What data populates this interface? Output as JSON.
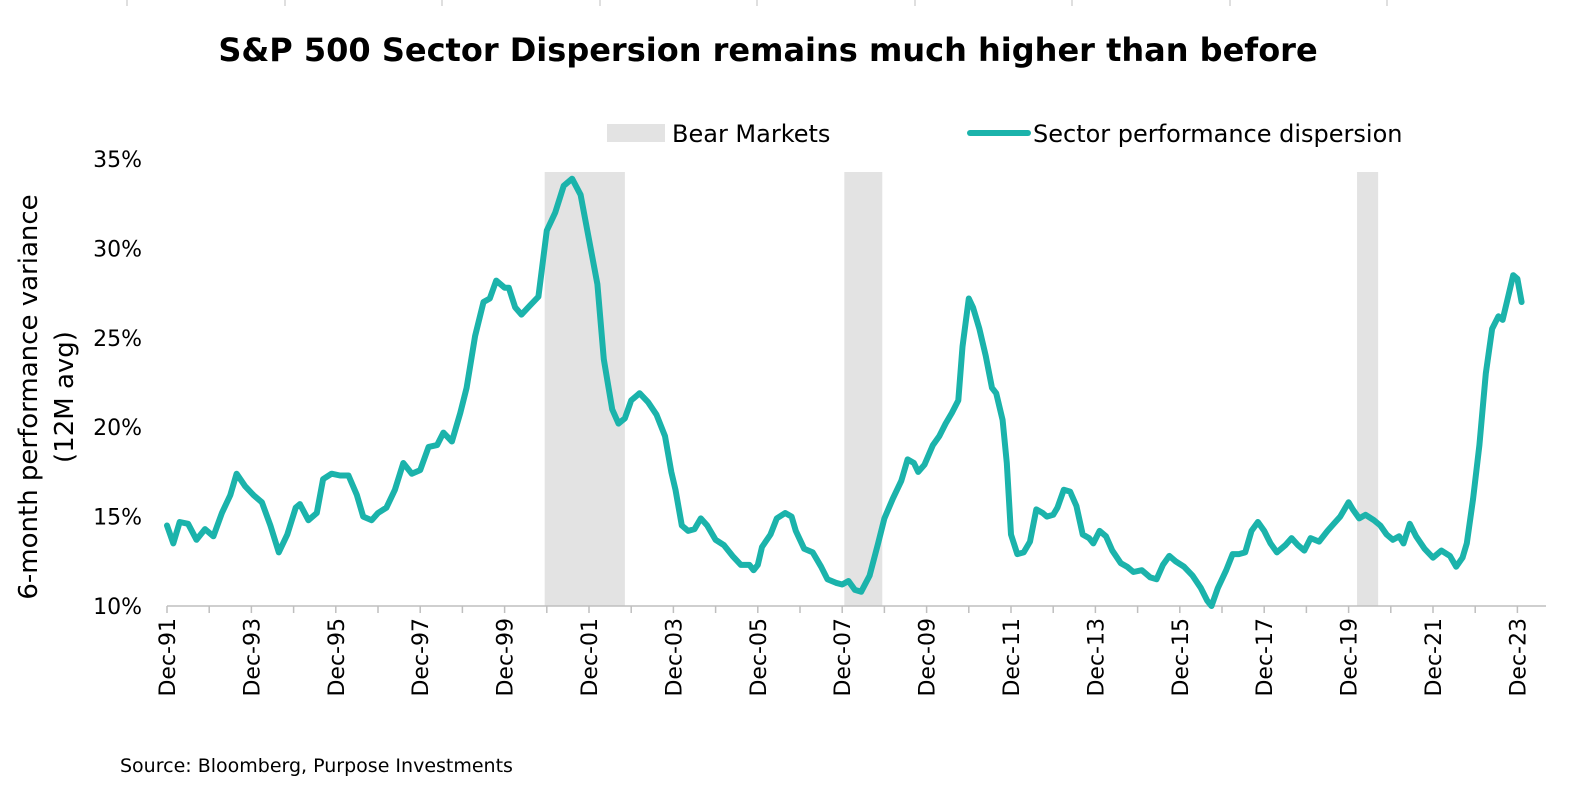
{
  "chart_data": {
    "type": "line",
    "title": "S&P 500 Sector Dispersion remains much higher than before",
    "ylabel_line1": "6-month performance variance",
    "ylabel_line2": "(12M avg)",
    "source": "Source: Bloomberg, Purpose Investments",
    "ylim": [
      10,
      35
    ],
    "yticks": [
      10,
      15,
      20,
      25,
      30,
      35
    ],
    "ytick_labels": [
      "10%",
      "15%",
      "20%",
      "25%",
      "30%",
      "35%"
    ],
    "xlim": [
      1991.95,
      2024.3
    ],
    "xticks": [
      1991.95,
      1993.95,
      1995.95,
      1997.95,
      1999.95,
      2001.95,
      2003.95,
      2005.95,
      2007.95,
      2009.95,
      2011.95,
      2013.95,
      2015.95,
      2017.95,
      2019.95,
      2021.95,
      2023.95
    ],
    "xtick_labels": [
      "Dec-91",
      "Dec-93",
      "Dec-95",
      "Dec-97",
      "Dec-99",
      "Dec-01",
      "Dec-03",
      "Dec-05",
      "Dec-07",
      "Dec-09",
      "Dec-11",
      "Dec-13",
      "Dec-15",
      "Dec-17",
      "Dec-19",
      "Dec-21",
      "Dec-23"
    ],
    "legend": {
      "position": "top-right",
      "bear_label": "Bear Markets",
      "series_label": "Sector performance dispersion"
    },
    "bear_markets": [
      [
        2000.9,
        2002.8
      ],
      [
        2008.0,
        2008.9
      ],
      [
        2020.15,
        2020.65
      ]
    ],
    "colors": {
      "line": "#1bb3ab",
      "bear": "#e3e3e3",
      "axis": "#bfbfbf"
    },
    "series": [
      {
        "name": "Sector performance dispersion",
        "points": [
          [
            1991.95,
            14.5
          ],
          [
            1992.1,
            13.5
          ],
          [
            1992.25,
            14.7
          ],
          [
            1992.45,
            14.6
          ],
          [
            1992.65,
            13.7
          ],
          [
            1992.85,
            14.3
          ],
          [
            1993.05,
            13.9
          ],
          [
            1993.25,
            15.2
          ],
          [
            1993.45,
            16.2
          ],
          [
            1993.6,
            17.4
          ],
          [
            1993.8,
            16.7
          ],
          [
            1994.0,
            16.2
          ],
          [
            1994.2,
            15.8
          ],
          [
            1994.4,
            14.5
          ],
          [
            1994.6,
            13.0
          ],
          [
            1994.8,
            14.0
          ],
          [
            1995.0,
            15.5
          ],
          [
            1995.1,
            15.7
          ],
          [
            1995.3,
            14.8
          ],
          [
            1995.5,
            15.2
          ],
          [
            1995.65,
            17.1
          ],
          [
            1995.85,
            17.4
          ],
          [
            1996.05,
            17.3
          ],
          [
            1996.25,
            17.3
          ],
          [
            1996.45,
            16.2
          ],
          [
            1996.6,
            15.0
          ],
          [
            1996.8,
            14.8
          ],
          [
            1996.95,
            15.2
          ],
          [
            1997.15,
            15.5
          ],
          [
            1997.35,
            16.5
          ],
          [
            1997.55,
            18.0
          ],
          [
            1997.75,
            17.4
          ],
          [
            1997.95,
            17.6
          ],
          [
            1998.15,
            18.9
          ],
          [
            1998.35,
            19.0
          ],
          [
            1998.5,
            19.7
          ],
          [
            1998.7,
            19.2
          ],
          [
            1998.9,
            20.8
          ],
          [
            1999.05,
            22.2
          ],
          [
            1999.25,
            25.1
          ],
          [
            1999.45,
            27.0
          ],
          [
            1999.6,
            27.2
          ],
          [
            1999.75,
            28.2
          ],
          [
            1999.95,
            27.8
          ],
          [
            2000.05,
            27.8
          ],
          [
            2000.2,
            26.7
          ],
          [
            2000.35,
            26.3
          ],
          [
            2000.55,
            26.8
          ],
          [
            2000.75,
            27.3
          ],
          [
            2000.95,
            31.0
          ],
          [
            2001.05,
            31.5
          ],
          [
            2001.15,
            32.0
          ],
          [
            2001.35,
            33.5
          ],
          [
            2001.55,
            33.9
          ],
          [
            2001.75,
            33.0
          ],
          [
            2001.95,
            30.5
          ],
          [
            2002.15,
            28.0
          ],
          [
            2002.3,
            23.8
          ],
          [
            2002.5,
            21.0
          ],
          [
            2002.65,
            20.2
          ],
          [
            2002.8,
            20.5
          ],
          [
            2002.95,
            21.5
          ],
          [
            2003.15,
            21.9
          ],
          [
            2003.35,
            21.4
          ],
          [
            2003.55,
            20.7
          ],
          [
            2003.75,
            19.5
          ],
          [
            2003.9,
            17.5
          ],
          [
            2004.0,
            16.5
          ],
          [
            2004.15,
            14.5
          ],
          [
            2004.3,
            14.2
          ],
          [
            2004.45,
            14.3
          ],
          [
            2004.6,
            14.9
          ],
          [
            2004.75,
            14.5
          ],
          [
            2004.95,
            13.7
          ],
          [
            2005.15,
            13.4
          ],
          [
            2005.35,
            12.8
          ],
          [
            2005.55,
            12.3
          ],
          [
            2005.75,
            12.3
          ],
          [
            2005.85,
            12.0
          ],
          [
            2005.95,
            12.3
          ],
          [
            2006.05,
            13.3
          ],
          [
            2006.25,
            14.0
          ],
          [
            2006.4,
            14.9
          ],
          [
            2006.6,
            15.2
          ],
          [
            2006.75,
            15.0
          ],
          [
            2006.85,
            14.2
          ],
          [
            2006.95,
            13.7
          ],
          [
            2007.05,
            13.2
          ],
          [
            2007.25,
            13.0
          ],
          [
            2007.45,
            12.2
          ],
          [
            2007.6,
            11.5
          ],
          [
            2007.8,
            11.3
          ],
          [
            2007.95,
            11.2
          ],
          [
            2008.1,
            11.4
          ],
          [
            2008.25,
            10.9
          ],
          [
            2008.4,
            10.8
          ],
          [
            2008.6,
            11.7
          ],
          [
            2008.8,
            13.5
          ],
          [
            2008.95,
            14.9
          ],
          [
            2009.15,
            16.0
          ],
          [
            2009.35,
            17.0
          ],
          [
            2009.5,
            18.2
          ],
          [
            2009.65,
            18.0
          ],
          [
            2009.75,
            17.5
          ],
          [
            2009.9,
            17.9
          ],
          [
            2010.1,
            19.0
          ],
          [
            2010.25,
            19.5
          ],
          [
            2010.4,
            20.2
          ],
          [
            2010.55,
            20.8
          ],
          [
            2010.7,
            21.5
          ],
          [
            2010.8,
            24.5
          ],
          [
            2010.95,
            27.2
          ],
          [
            2011.05,
            26.7
          ],
          [
            2011.2,
            25.5
          ],
          [
            2011.35,
            24.0
          ],
          [
            2011.5,
            22.2
          ],
          [
            2011.6,
            21.9
          ],
          [
            2011.75,
            20.4
          ],
          [
            2011.85,
            18.0
          ],
          [
            2011.95,
            14.0
          ],
          [
            2012.1,
            12.9
          ],
          [
            2012.25,
            13.0
          ],
          [
            2012.4,
            13.6
          ],
          [
            2012.55,
            15.4
          ],
          [
            2012.7,
            15.2
          ],
          [
            2012.8,
            15.0
          ],
          [
            2012.95,
            15.1
          ],
          [
            2013.05,
            15.5
          ],
          [
            2013.2,
            16.5
          ],
          [
            2013.35,
            16.4
          ],
          [
            2013.5,
            15.6
          ],
          [
            2013.65,
            14.0
          ],
          [
            2013.8,
            13.8
          ],
          [
            2013.9,
            13.5
          ],
          [
            2014.05,
            14.2
          ],
          [
            2014.2,
            13.9
          ],
          [
            2014.35,
            13.1
          ],
          [
            2014.55,
            12.4
          ],
          [
            2014.7,
            12.2
          ],
          [
            2014.85,
            11.9
          ],
          [
            2015.05,
            12.0
          ],
          [
            2015.25,
            11.6
          ],
          [
            2015.4,
            11.5
          ],
          [
            2015.55,
            12.3
          ],
          [
            2015.7,
            12.8
          ],
          [
            2015.85,
            12.5
          ],
          [
            2016.05,
            12.2
          ],
          [
            2016.25,
            11.7
          ],
          [
            2016.45,
            11.0
          ],
          [
            2016.6,
            10.3
          ],
          [
            2016.7,
            10.0
          ],
          [
            2016.85,
            11.0
          ],
          [
            2017.05,
            12.0
          ],
          [
            2017.2,
            12.9
          ],
          [
            2017.35,
            12.9
          ],
          [
            2017.5,
            13.0
          ],
          [
            2017.65,
            14.2
          ],
          [
            2017.8,
            14.7
          ],
          [
            2017.95,
            14.2
          ],
          [
            2018.1,
            13.5
          ],
          [
            2018.25,
            13.0
          ],
          [
            2018.45,
            13.4
          ],
          [
            2018.6,
            13.8
          ],
          [
            2018.75,
            13.4
          ],
          [
            2018.9,
            13.1
          ],
          [
            2019.05,
            13.8
          ],
          [
            2019.25,
            13.6
          ],
          [
            2019.45,
            14.2
          ],
          [
            2019.6,
            14.6
          ],
          [
            2019.75,
            15.0
          ],
          [
            2019.95,
            15.8
          ],
          [
            2020.05,
            15.4
          ],
          [
            2020.2,
            14.9
          ],
          [
            2020.35,
            15.1
          ],
          [
            2020.55,
            14.8
          ],
          [
            2020.7,
            14.5
          ],
          [
            2020.85,
            14.0
          ],
          [
            2021.0,
            13.7
          ],
          [
            2021.15,
            13.9
          ],
          [
            2021.25,
            13.5
          ],
          [
            2021.4,
            14.6
          ],
          [
            2021.55,
            13.9
          ],
          [
            2021.75,
            13.2
          ],
          [
            2021.95,
            12.7
          ],
          [
            2022.15,
            13.1
          ],
          [
            2022.35,
            12.8
          ],
          [
            2022.5,
            12.2
          ],
          [
            2022.65,
            12.7
          ],
          [
            2022.75,
            13.5
          ],
          [
            2022.9,
            16.0
          ],
          [
            2023.05,
            19.0
          ],
          [
            2023.2,
            23.0
          ],
          [
            2023.35,
            25.5
          ],
          [
            2023.5,
            26.2
          ],
          [
            2023.6,
            26.0
          ],
          [
            2023.75,
            27.5
          ],
          [
            2023.85,
            28.5
          ],
          [
            2023.95,
            28.3
          ],
          [
            2024.05,
            27.0
          ]
        ]
      }
    ]
  }
}
